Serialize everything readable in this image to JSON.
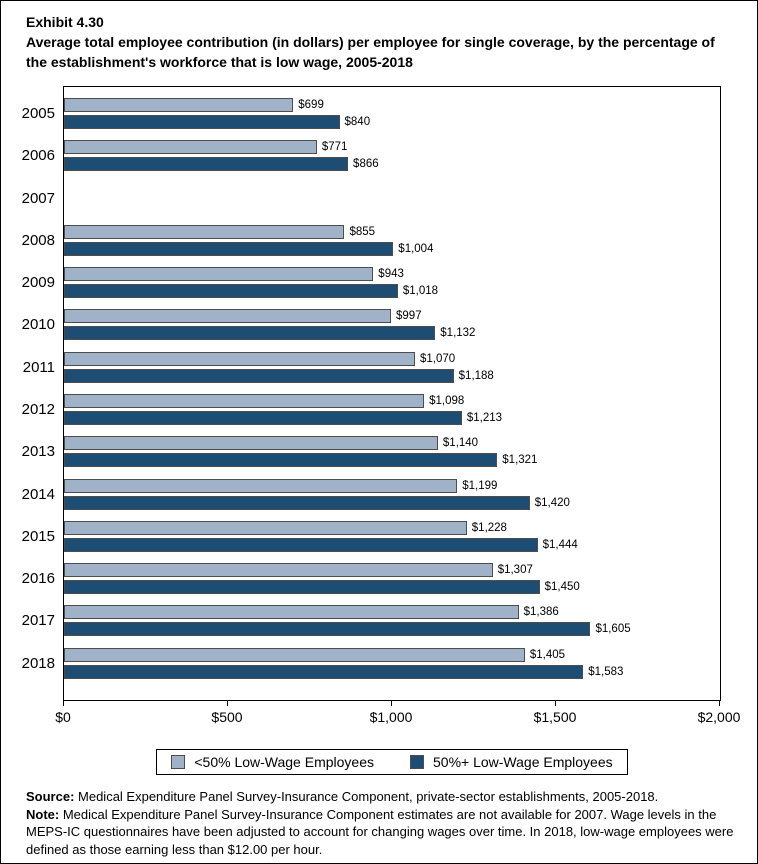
{
  "exhibit": {
    "label": "Exhibit 4.30",
    "title": "Average total employee contribution (in dollars) per employee for single coverage, by the percentage of the establishment's workforce that is low wage, 2005-2018"
  },
  "chart_data": {
    "type": "bar",
    "orientation": "horizontal",
    "categories": [
      "2005",
      "2006",
      "2007",
      "2008",
      "2009",
      "2010",
      "2011",
      "2012",
      "2013",
      "2014",
      "2015",
      "2016",
      "2017",
      "2018"
    ],
    "series": [
      {
        "name": "<50% Low-Wage Employees",
        "color": "#a0b2c7",
        "values": [
          699,
          771,
          null,
          855,
          943,
          997,
          1070,
          1098,
          1140,
          1199,
          1228,
          1307,
          1386,
          1405
        ],
        "labels": [
          "$699",
          "$771",
          "",
          "$855",
          "$943",
          "$997",
          "$1,070",
          "$1,098",
          "$1,140",
          "$1,199",
          "$1,228",
          "$1,307",
          "$1,386",
          "$1,405"
        ]
      },
      {
        "name": "50%+ Low-Wage Employees",
        "color": "#1e4d73",
        "values": [
          840,
          866,
          null,
          1004,
          1018,
          1132,
          1188,
          1213,
          1321,
          1420,
          1444,
          1450,
          1605,
          1583
        ],
        "labels": [
          "$840",
          "$866",
          "",
          "$1,004",
          "$1,018",
          "$1,132",
          "$1,188",
          "$1,213",
          "$1,321",
          "$1,420",
          "$1,444",
          "$1,450",
          "$1,605",
          "$1,583"
        ]
      }
    ],
    "xlim": [
      0,
      2000
    ],
    "x_ticks": [
      "$0",
      "$500",
      "$1,000",
      "$1,500",
      "$2,000"
    ],
    "grid": false,
    "legend_position": "bottom",
    "bar_border_color": "#4d4d4d",
    "missing_data_years": [
      "2007"
    ]
  },
  "footnotes": {
    "source_label": "Source:",
    "source_text": " Medical Expenditure Panel Survey-Insurance Component, private-sector establishments, 2005-2018.",
    "note_label": "Note:",
    "note_text": " Medical Expenditure Panel Survey-Insurance Component estimates are not available for 2007. Wage levels in the MEPS-IC questionnaires have been adjusted to account for changing wages over time. In 2018, low-wage employees were defined as those earning less than $12.00 per hour."
  }
}
